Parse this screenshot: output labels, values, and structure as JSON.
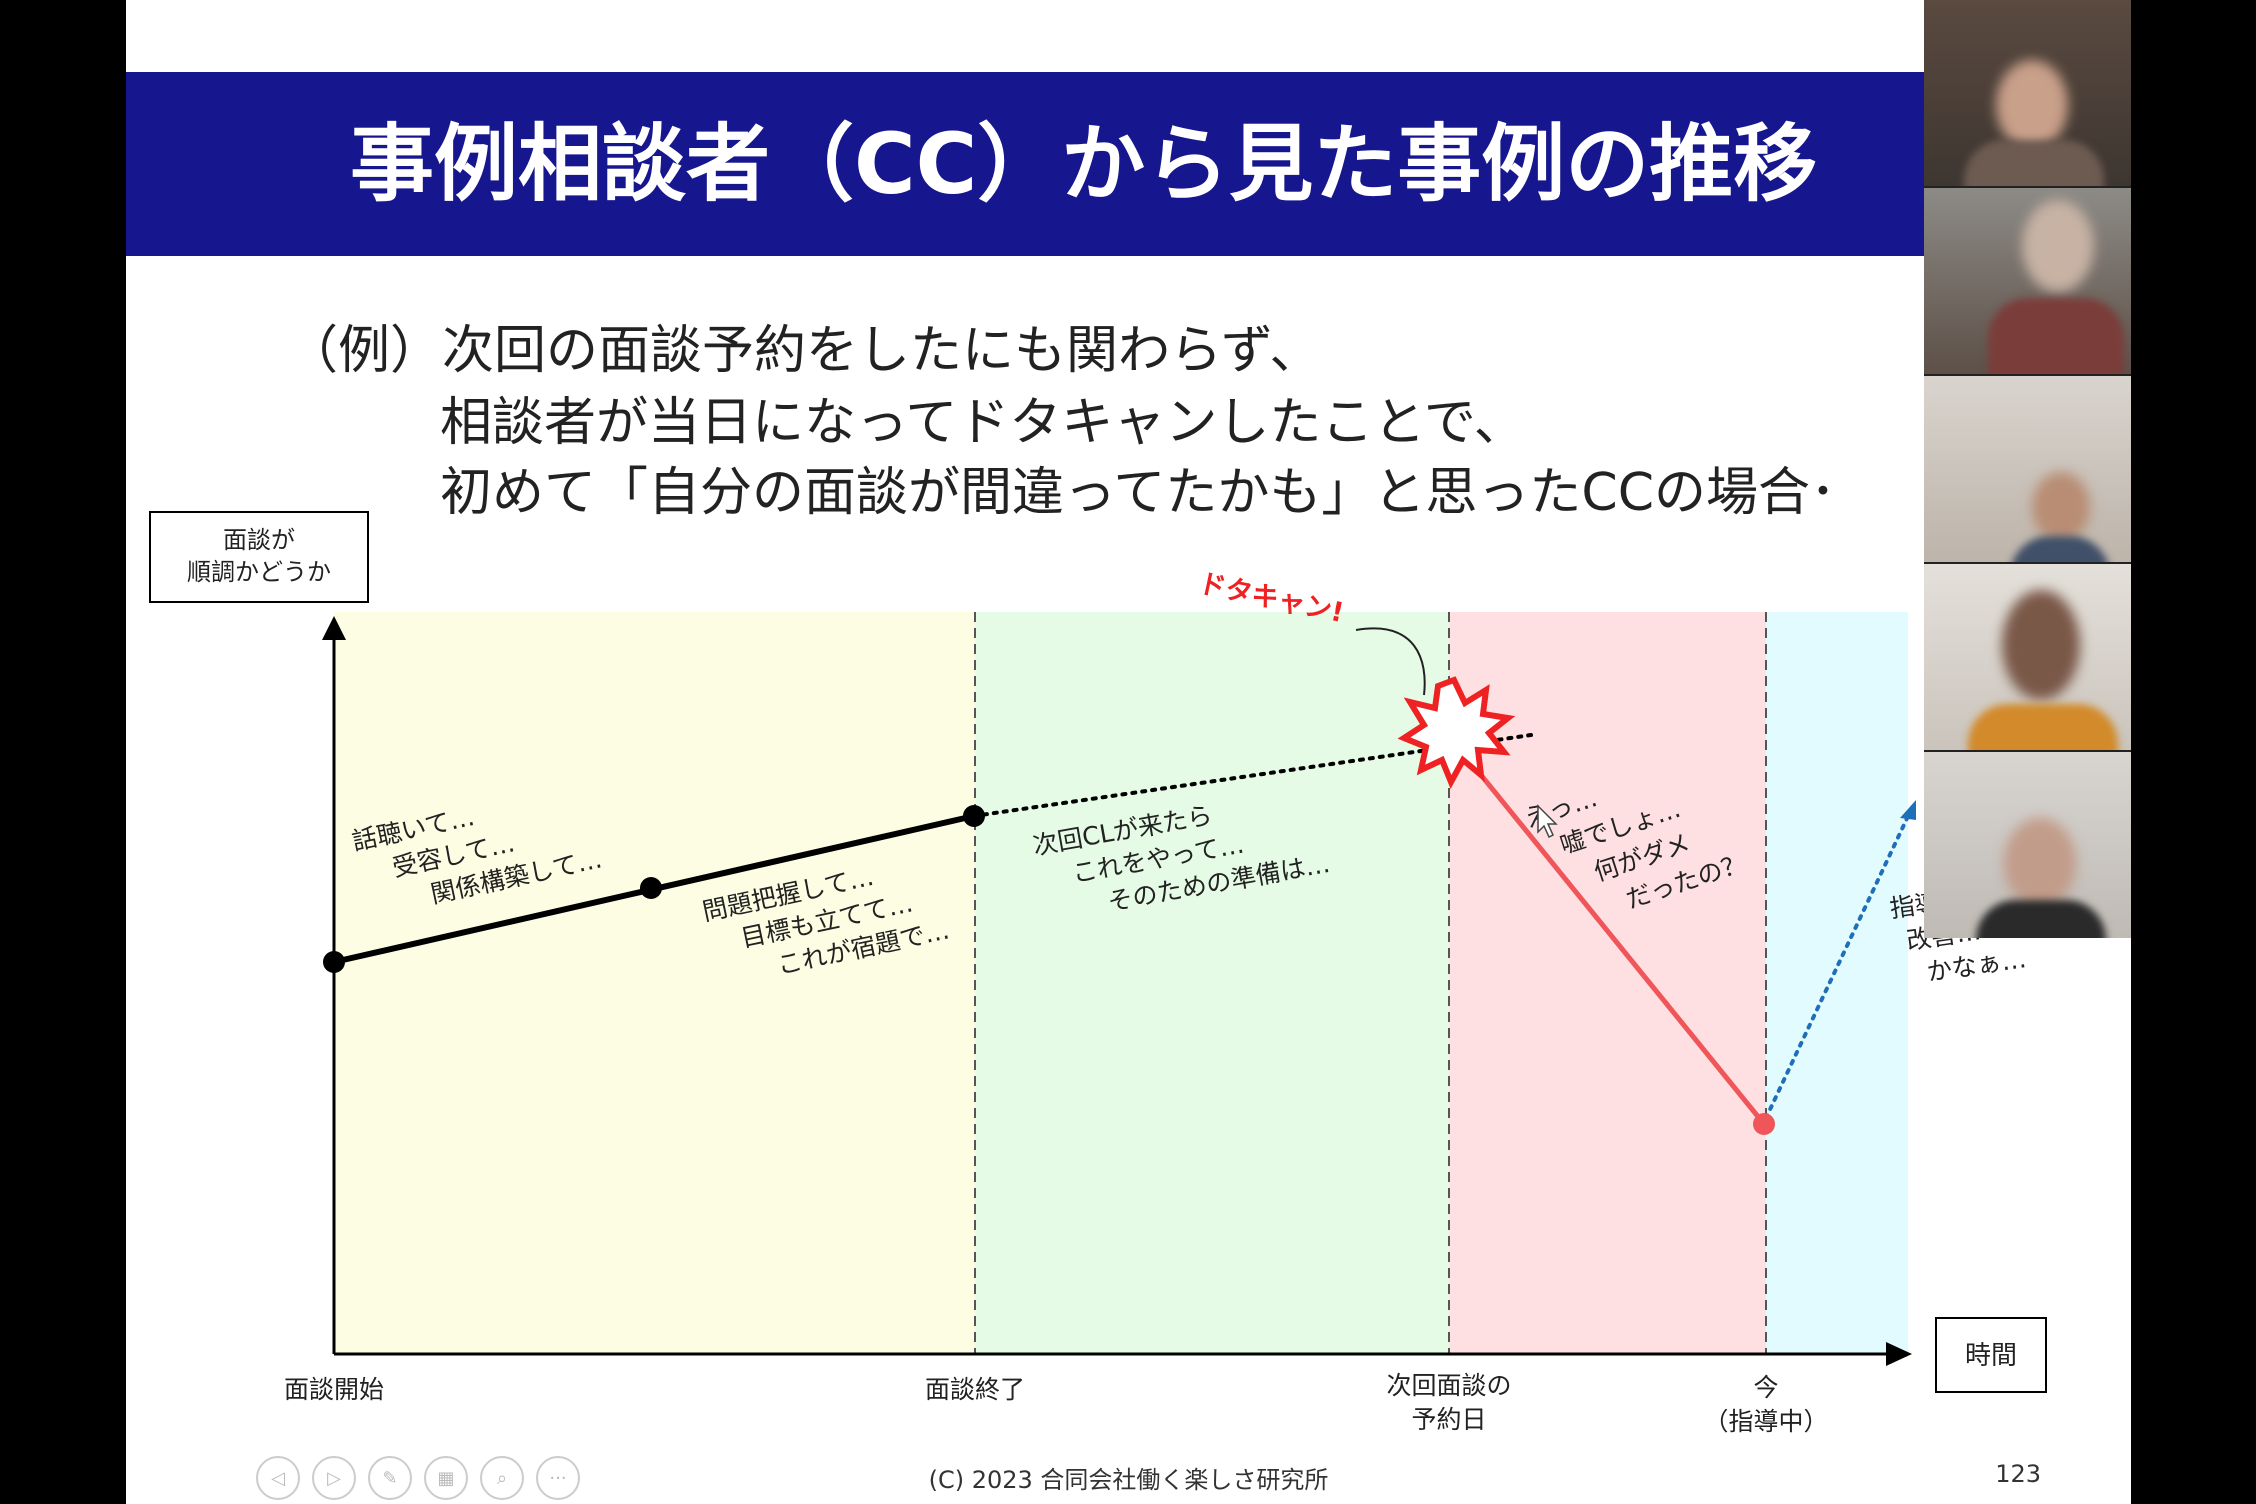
{
  "slide": {
    "title": "事例相談者（CC）から見た事例の推移",
    "example_lines": [
      "（例）次回の面談予約をしたにも関わらず、",
      "相談者が当日になってドタキャンしたことで、",
      "初めて「自分の面談が間違ってたかも」と思ったCCの場合･"
    ],
    "footer": "(C) 2023 合同会社働く楽しさ研究所",
    "page_number": "123"
  },
  "chart_data": {
    "type": "line",
    "y_axis_label": [
      "面談が",
      "順調かどうか"
    ],
    "x_axis_label": "時間",
    "phases": [
      {
        "name": "面談開始",
        "color": "#fdfde4"
      },
      {
        "name": "面談終了",
        "color": "#e6fbe6"
      },
      {
        "name": "次回面談の予約日",
        "color": "#fee0e2"
      },
      {
        "name": "今（指導中）",
        "color": "#e2fbfe"
      }
    ],
    "x_ticks": [
      {
        "lines": [
          "面談開始"
        ]
      },
      {
        "lines": [
          "面談終了"
        ]
      },
      {
        "lines": [
          "次回面談の",
          "予約日"
        ]
      },
      {
        "lines": [
          "今",
          "（指導中）"
        ]
      }
    ],
    "annotations": {
      "phase1_a": [
        "話聴いて…",
        "受容して…",
        "関係構築して…"
      ],
      "phase1_b": [
        "問題把握して…",
        "目標も立てて…",
        "これが宿題で…"
      ],
      "phase2": [
        "次回CLが来たら",
        "これをやって…",
        "そのための準備は…"
      ],
      "phase3": [
        "えっ…",
        "嘘でしょ…",
        "何がダメ",
        "だったの？"
      ],
      "phase4": [
        "指導…",
        "改善…",
        "かなぁ…"
      ],
      "burst": "ドタキャン!"
    },
    "colors": {
      "solid_line": "#000000",
      "drop_line": "#f0555a",
      "recover_line": "#1e6fb8",
      "burst": "#ee2222"
    }
  },
  "nav_icons": [
    "prev-icon",
    "next-icon",
    "pen-icon",
    "slides-icon",
    "zoom-icon",
    "more-icon"
  ],
  "video_tiles": [
    "participant-1",
    "participant-2",
    "participant-3",
    "participant-4",
    "participant-5"
  ]
}
